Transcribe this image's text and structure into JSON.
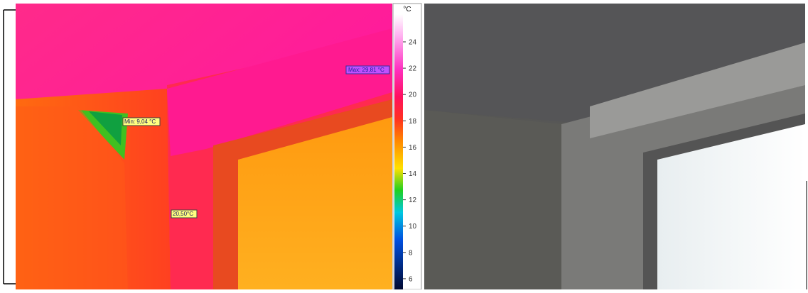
{
  "thermal_image": {
    "annotations": [
      {
        "label": "Max: 29,81 °C"
      },
      {
        "label": "Min: 9,04 °C"
      },
      {
        "label": "20,50°C"
      }
    ]
  },
  "scale": {
    "unit": "°C",
    "ticks": [
      24,
      22,
      20,
      18,
      16,
      14,
      12,
      10,
      8,
      6
    ]
  }
}
